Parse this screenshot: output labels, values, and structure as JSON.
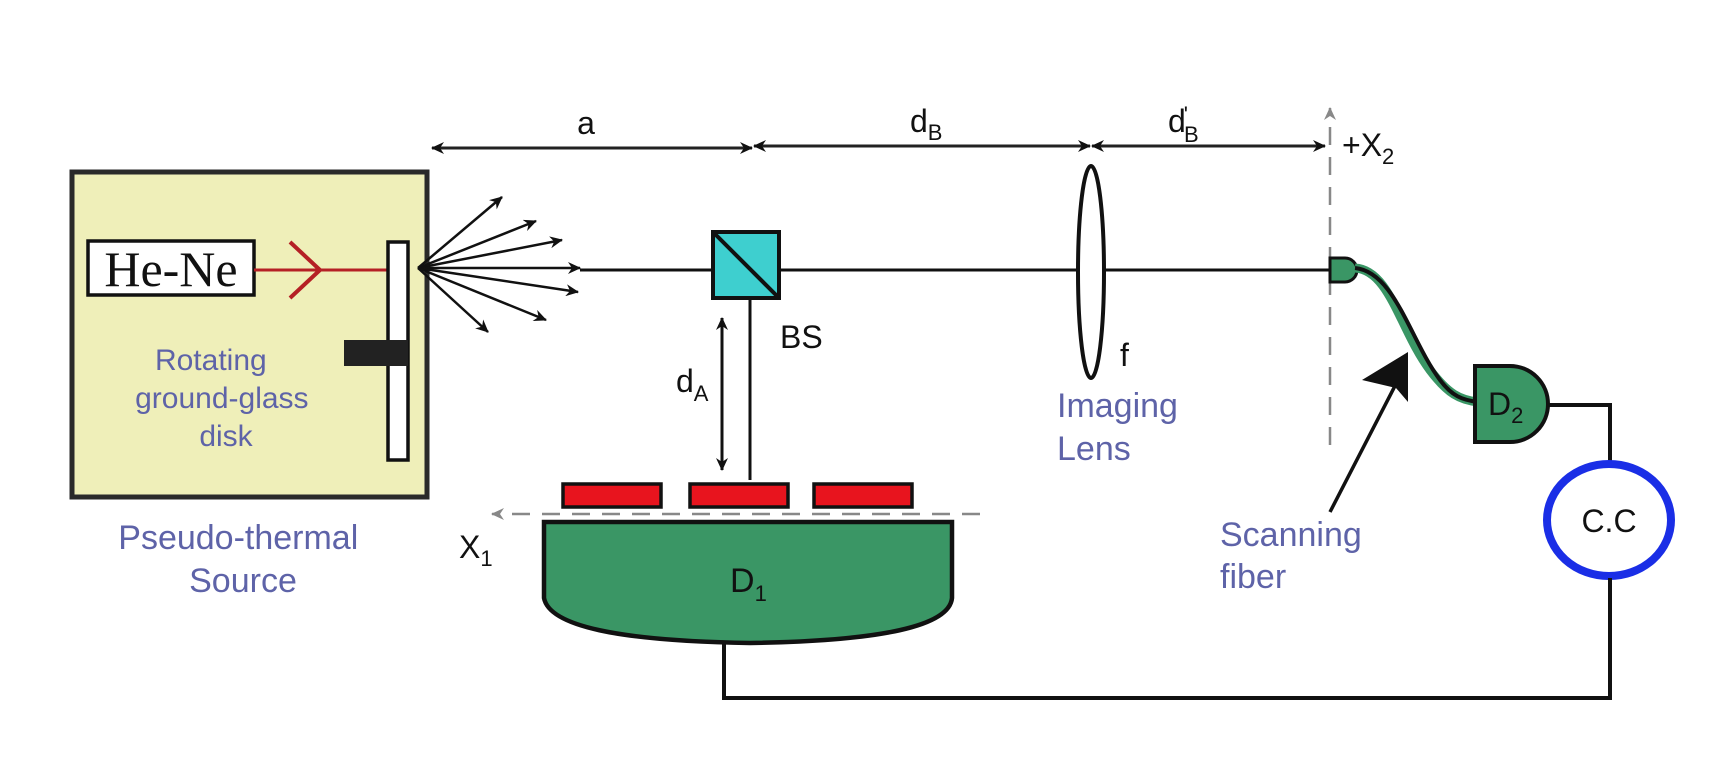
{
  "colors": {
    "source_box_fill": "#efefb9",
    "laser_beam": "#b52025",
    "beam_splitter": "#3ecfcf",
    "detector_green": "#3a9665",
    "slit_red": "#e8141e",
    "cc_ring": "#1a2ee6",
    "blue_text": "#5e63a8",
    "line": "#111111",
    "dashed_axis": "#888888"
  },
  "labels": {
    "laser": "He-Ne",
    "disk": [
      "Rotating",
      "ground-glass",
      "disk"
    ],
    "source": [
      "Pseudo-thermal",
      "Source"
    ],
    "dist_a": "a",
    "dist_dB": {
      "main": "d",
      "sub": "B"
    },
    "dist_dB_prime": {
      "main": "d",
      "prime": "'",
      "sub": "B"
    },
    "dist_dA": {
      "main": "d",
      "sub": "A"
    },
    "bs": "BS",
    "lens_focal": "f",
    "imaging_lens": [
      "Imaging",
      "Lens"
    ],
    "x2_axis": {
      "main": "+X",
      "sub": "2"
    },
    "x1_axis": {
      "main": "X",
      "sub": "1"
    },
    "detector1": {
      "main": "D",
      "sub": "1"
    },
    "detector2": {
      "main": "D",
      "sub": "2"
    },
    "coincidence": "C.C",
    "fiber": [
      "Scanning",
      "fiber"
    ]
  }
}
